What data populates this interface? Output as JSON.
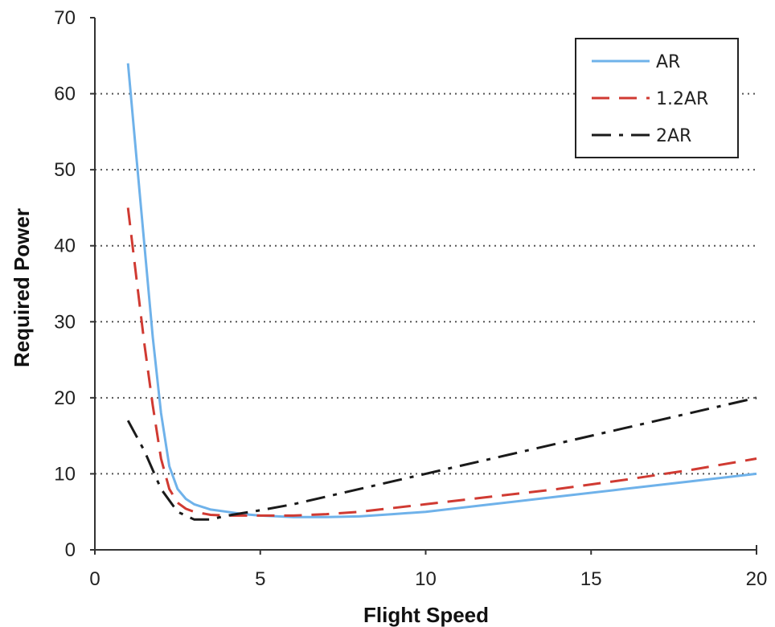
{
  "chart_data": {
    "type": "line",
    "xlabel": "Flight Speed",
    "ylabel": "Required Power",
    "xlim": [
      0,
      20
    ],
    "ylim": [
      0,
      70
    ],
    "xticks": [
      0,
      5,
      10,
      15,
      20
    ],
    "yticks": [
      0,
      10,
      20,
      30,
      40,
      50,
      60,
      70
    ],
    "grid": "horizontal dotted",
    "legend_position": "top-right",
    "series": [
      {
        "name": "AR",
        "color": "#6fb2ea",
        "style": "solid",
        "x": [
          1,
          1.25,
          1.5,
          1.75,
          2,
          2.25,
          2.5,
          2.75,
          3,
          3.5,
          4,
          4.5,
          5,
          6,
          7,
          8,
          9,
          10,
          12,
          14,
          16,
          18,
          20
        ],
        "y": [
          64,
          52,
          40,
          28,
          18,
          11,
          8,
          6.7,
          6,
          5.3,
          5,
          4.7,
          4.5,
          4.3,
          4.3,
          4.4,
          4.7,
          5,
          6,
          7,
          8,
          9,
          10
        ]
      },
      {
        "name": "1.2AR",
        "color": "#d03a32",
        "style": "dashed",
        "x": [
          1,
          1.25,
          1.5,
          1.75,
          2,
          2.25,
          2.5,
          2.75,
          3,
          3.5,
          4,
          5,
          6,
          7,
          8,
          9,
          10,
          12,
          14,
          16,
          18,
          20
        ],
        "y": [
          45,
          36,
          27,
          19,
          12,
          8,
          6.2,
          5.4,
          5,
          4.6,
          4.5,
          4.5,
          4.5,
          4.7,
          5,
          5.5,
          6,
          7,
          8,
          9.2,
          10.5,
          12
        ]
      },
      {
        "name": "2AR",
        "color": "#1a1a1a",
        "style": "dash-dot",
        "x": [
          1,
          1.5,
          2,
          2.5,
          3,
          3.5,
          4,
          5,
          6,
          8,
          10,
          12,
          14,
          16,
          18,
          20
        ],
        "y": [
          17,
          13,
          8,
          5,
          4,
          4,
          4.5,
          5.2,
          6,
          8,
          10,
          12,
          14,
          16,
          18,
          20
        ]
      }
    ]
  }
}
